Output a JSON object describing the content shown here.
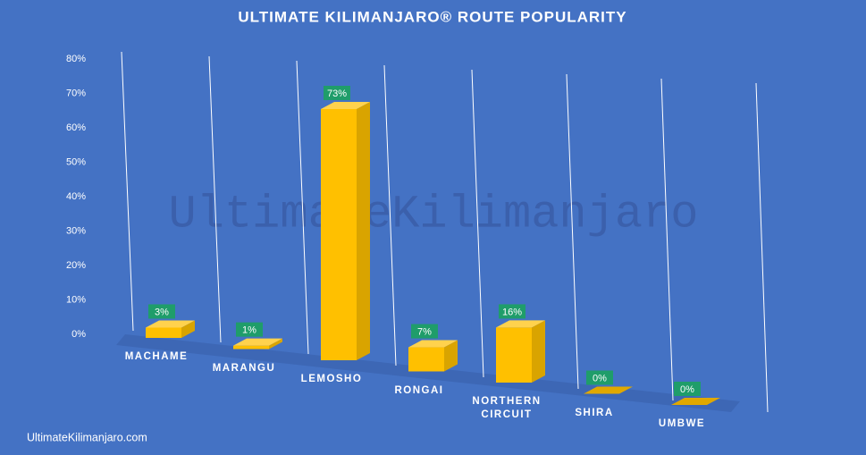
{
  "chart_data": {
    "type": "bar",
    "title": "ULTIMATE KILIMANJARO® ROUTE POPULARITY",
    "watermark": "UltimateKilimanjaro",
    "source": "UltimateKilimanjaro.com",
    "categories": [
      "MACHAME",
      "MARANGU",
      "LEMOSHO",
      "RONGAI",
      "NORTHERN CIRCUIT",
      "SHIRA",
      "UMBWE"
    ],
    "values": [
      3,
      1,
      73,
      7,
      16,
      0,
      0
    ],
    "value_labels": [
      "3%",
      "1%",
      "73%",
      "7%",
      "16%",
      "0%",
      "0%"
    ],
    "color": "#ffc000",
    "label_color": "#1f9d6a",
    "ylim": [
      0,
      80
    ],
    "yticks": [
      {
        "value": 0,
        "label": "0%"
      },
      {
        "value": 10,
        "label": "10%"
      },
      {
        "value": 20,
        "label": "20%"
      },
      {
        "value": 30,
        "label": "30%"
      },
      {
        "value": 40,
        "label": "40%"
      },
      {
        "value": 50,
        "label": "50%"
      },
      {
        "value": 60,
        "label": "60%"
      },
      {
        "value": 70,
        "label": "70%"
      },
      {
        "value": 80,
        "label": "80%"
      }
    ],
    "grid": true
  }
}
